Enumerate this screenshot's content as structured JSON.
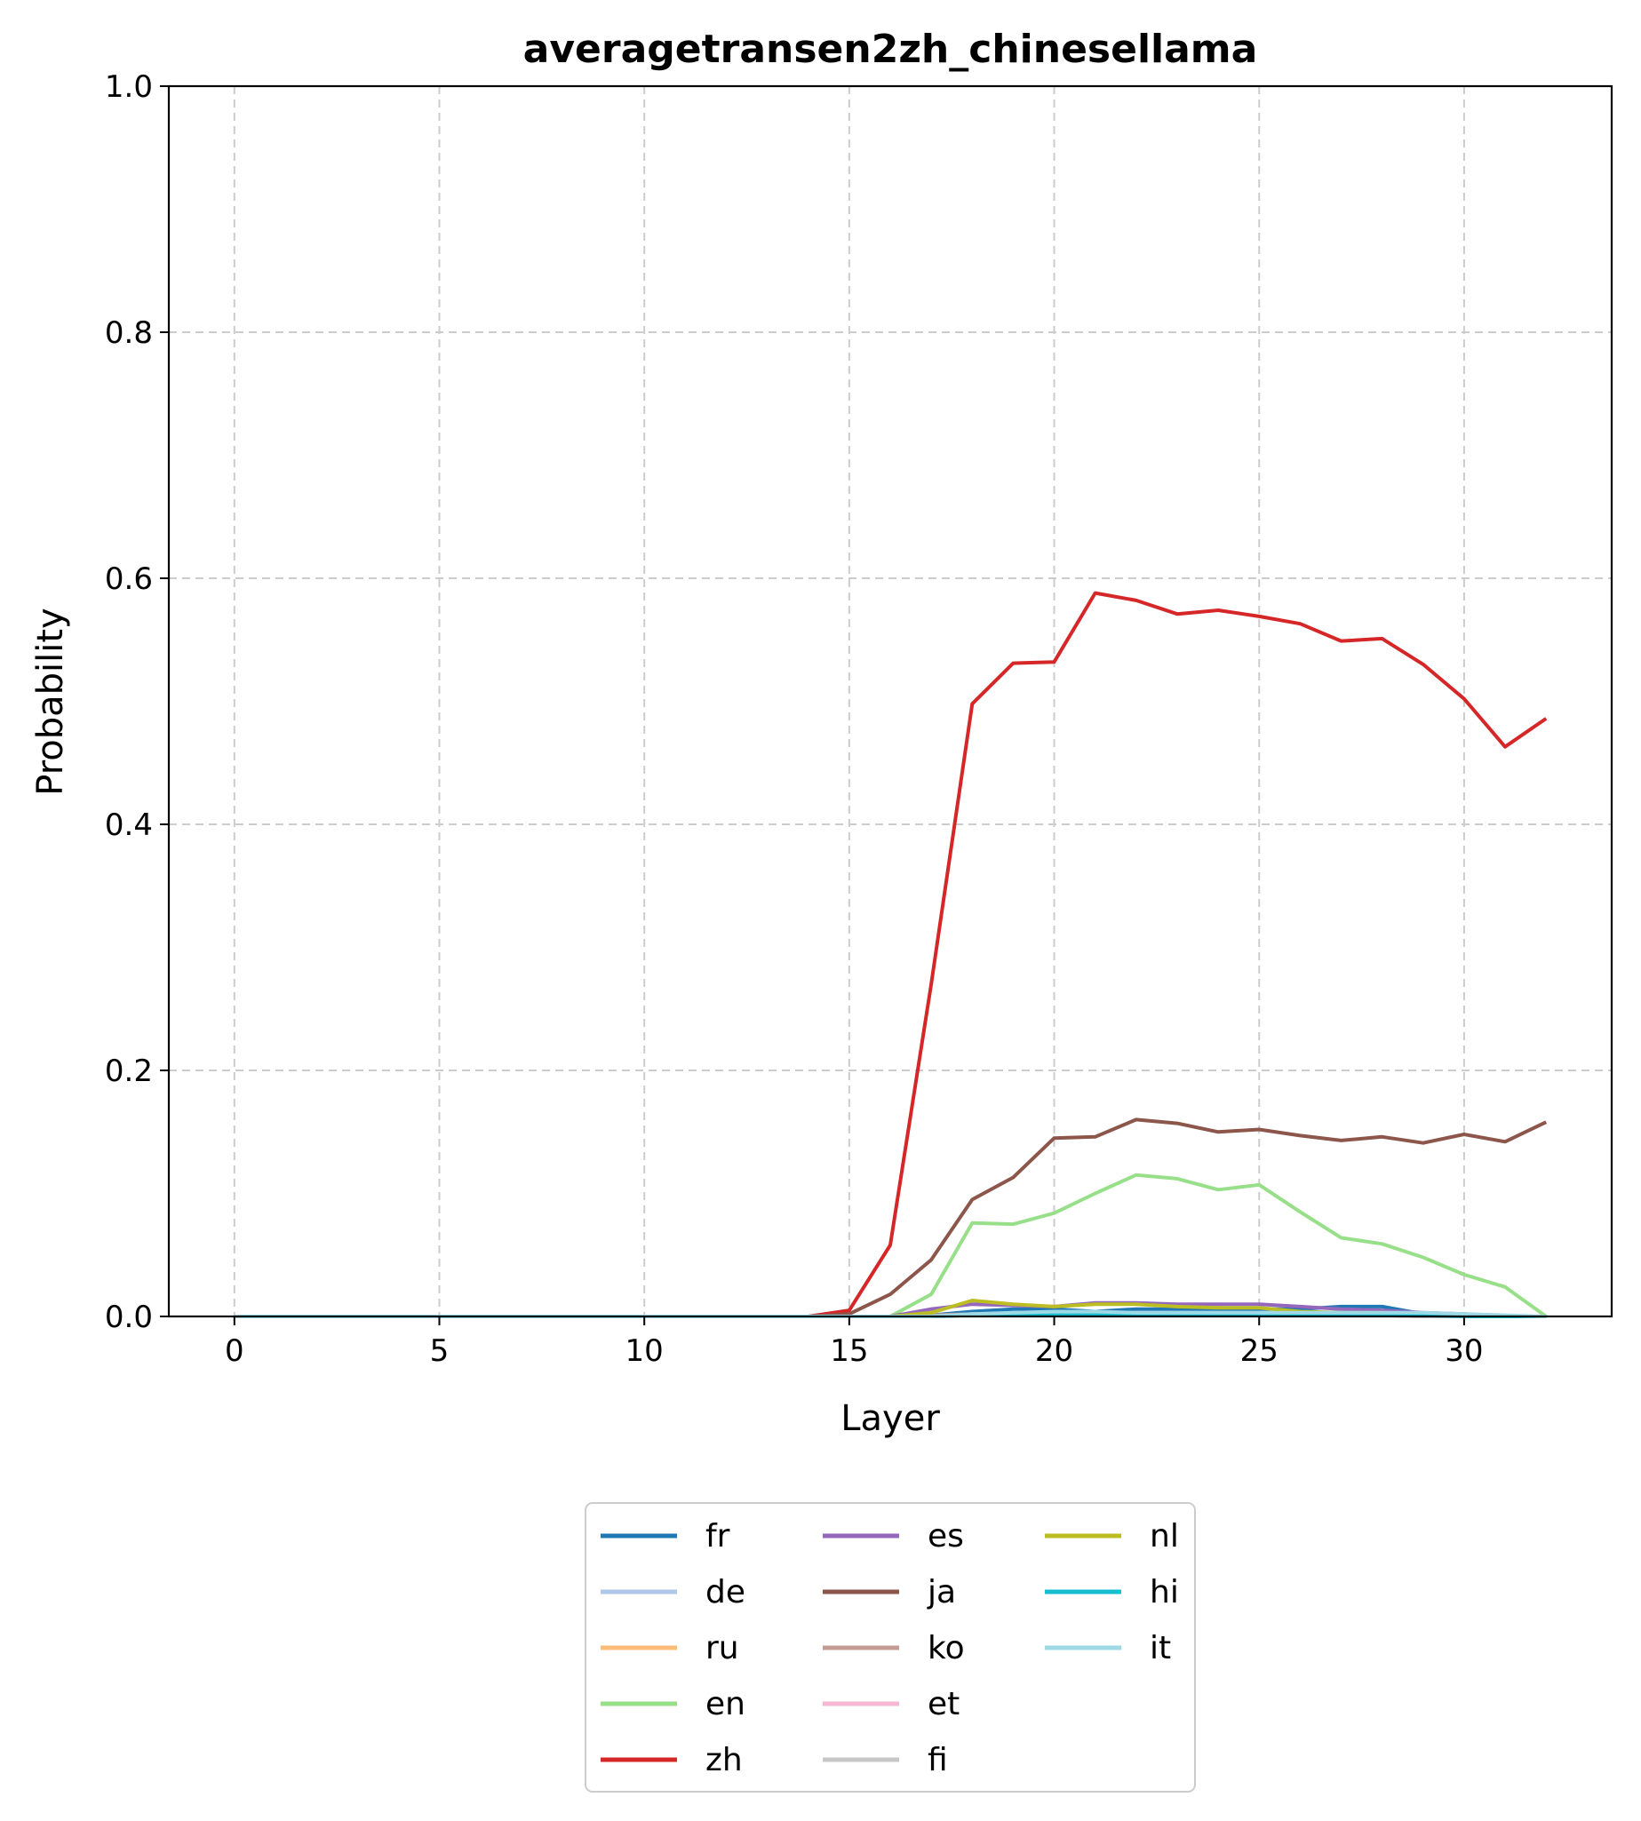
{
  "chart_data": {
    "type": "line",
    "title": "averagetransen2zh_chinesellama",
    "xlabel": "Layer",
    "ylabel": "Probability",
    "xlim": [
      -1.6,
      33.6
    ],
    "ylim": [
      0,
      1.0
    ],
    "xticks": [
      0,
      5,
      10,
      15,
      20,
      25,
      30
    ],
    "yticks": [
      0.0,
      0.2,
      0.4,
      0.6,
      0.8,
      1.0
    ],
    "ytick_labels": [
      "0.0",
      "0.2",
      "0.4",
      "0.6",
      "0.8",
      "1.0"
    ],
    "grid": true,
    "legend_position": "bottom-center",
    "legend_columns": 3,
    "x": [
      0,
      1,
      2,
      3,
      4,
      5,
      6,
      7,
      8,
      9,
      10,
      11,
      12,
      13,
      14,
      15,
      16,
      17,
      18,
      19,
      20,
      21,
      22,
      23,
      24,
      25,
      26,
      27,
      28,
      29,
      30,
      31,
      32
    ],
    "series": [
      {
        "name": "fr",
        "color": "#1f77b4",
        "values": [
          0,
          0,
          0,
          0,
          0,
          0,
          0,
          0,
          0,
          0,
          0,
          0,
          0,
          0,
          0,
          0,
          0,
          0.001,
          0.004,
          0.006,
          0.006,
          0.004,
          0.006,
          0.006,
          0.006,
          0.006,
          0.006,
          0.008,
          0.008,
          0.002,
          0.001,
          0,
          0
        ]
      },
      {
        "name": "de",
        "color": "#aec7e8",
        "values": [
          0,
          0,
          0,
          0,
          0,
          0,
          0,
          0,
          0,
          0,
          0,
          0,
          0,
          0,
          0,
          0,
          0,
          0,
          0.002,
          0.002,
          0.002,
          0.002,
          0.002,
          0.002,
          0.002,
          0.002,
          0.002,
          0.002,
          0.002,
          0.001,
          0.001,
          0,
          0
        ]
      },
      {
        "name": "ru",
        "color": "#ffbb78",
        "values": [
          0,
          0,
          0,
          0,
          0,
          0,
          0,
          0,
          0,
          0,
          0,
          0,
          0,
          0,
          0,
          0,
          0,
          0,
          0.001,
          0.001,
          0.001,
          0.001,
          0.001,
          0.001,
          0.001,
          0.001,
          0.001,
          0.001,
          0.001,
          0,
          0,
          0,
          0
        ]
      },
      {
        "name": "en",
        "color": "#98df8a",
        "values": [
          0,
          0,
          0,
          0,
          0,
          0,
          0,
          0,
          0,
          0,
          0,
          0,
          0,
          0,
          0,
          0,
          0,
          0.018,
          0.076,
          0.075,
          0.084,
          0.1,
          0.115,
          0.112,
          0.103,
          0.107,
          0.085,
          0.064,
          0.059,
          0.048,
          0.034,
          0.024,
          0
        ]
      },
      {
        "name": "zh",
        "color": "#d62728",
        "values": [
          0,
          0,
          0,
          0,
          0,
          0,
          0,
          0,
          0,
          0,
          0,
          0,
          0,
          0,
          0,
          0.005,
          0.058,
          0.27,
          0.498,
          0.531,
          0.532,
          0.588,
          0.582,
          0.571,
          0.574,
          0.569,
          0.563,
          0.549,
          0.551,
          0.53,
          0.502,
          0.463,
          0.486
        ]
      },
      {
        "name": "es",
        "color": "#9467bd",
        "values": [
          0,
          0,
          0,
          0,
          0,
          0,
          0,
          0,
          0,
          0,
          0,
          0,
          0,
          0,
          0,
          0,
          0,
          0.006,
          0.01,
          0.009,
          0.008,
          0.011,
          0.011,
          0.01,
          0.01,
          0.01,
          0.008,
          0.006,
          0.005,
          0.003,
          0.002,
          0,
          0
        ]
      },
      {
        "name": "ja",
        "color": "#8c564b",
        "values": [
          0,
          0,
          0,
          0,
          0,
          0,
          0,
          0,
          0,
          0,
          0,
          0,
          0,
          0,
          0,
          0.002,
          0.018,
          0.046,
          0.095,
          0.113,
          0.145,
          0.146,
          0.16,
          0.157,
          0.15,
          0.152,
          0.147,
          0.143,
          0.146,
          0.141,
          0.148,
          0.142,
          0.158
        ]
      },
      {
        "name": "ko",
        "color": "#c49c94",
        "values": [
          0,
          0,
          0,
          0,
          0,
          0,
          0,
          0,
          0,
          0,
          0,
          0,
          0,
          0,
          0,
          0,
          0,
          0.001,
          0.002,
          0.002,
          0.002,
          0.002,
          0.002,
          0.002,
          0.002,
          0.002,
          0.002,
          0.002,
          0.002,
          0.001,
          0.001,
          0,
          0
        ]
      },
      {
        "name": "et",
        "color": "#f7b6d2",
        "values": [
          0,
          0,
          0,
          0,
          0,
          0,
          0,
          0,
          0,
          0,
          0,
          0,
          0,
          0,
          0,
          0,
          0,
          0,
          0.001,
          0.001,
          0.001,
          0.001,
          0.001,
          0.001,
          0.001,
          0.001,
          0.001,
          0.001,
          0.001,
          0,
          0,
          0,
          0
        ]
      },
      {
        "name": "fi",
        "color": "#c7c7c7",
        "values": [
          0,
          0,
          0,
          0,
          0,
          0,
          0,
          0,
          0,
          0,
          0,
          0,
          0,
          0,
          0,
          0,
          0,
          0,
          0.001,
          0.001,
          0.001,
          0.001,
          0.001,
          0.001,
          0.001,
          0.001,
          0.001,
          0.001,
          0.001,
          0,
          0,
          0,
          0
        ]
      },
      {
        "name": "nl",
        "color": "#bcbd22",
        "values": [
          0,
          0,
          0,
          0,
          0,
          0,
          0,
          0,
          0,
          0,
          0,
          0,
          0,
          0,
          0,
          0,
          0,
          0.003,
          0.013,
          0.01,
          0.008,
          0.01,
          0.01,
          0.008,
          0.007,
          0.007,
          0.004,
          0.003,
          0.003,
          0.002,
          0.001,
          0,
          0
        ]
      },
      {
        "name": "hi",
        "color": "#17becf",
        "values": [
          0,
          0,
          0,
          0,
          0,
          0,
          0,
          0,
          0,
          0,
          0,
          0,
          0,
          0,
          0,
          0,
          0,
          0,
          0.001,
          0.001,
          0.001,
          0.001,
          0.001,
          0.001,
          0.001,
          0.001,
          0.001,
          0.001,
          0.001,
          0.001,
          0,
          0,
          0
        ]
      },
      {
        "name": "it",
        "color": "#9edae5",
        "values": [
          0,
          0,
          0,
          0,
          0,
          0,
          0,
          0,
          0,
          0,
          0,
          0,
          0,
          0,
          0,
          0,
          0,
          0,
          0.002,
          0.003,
          0.004,
          0.004,
          0.003,
          0.003,
          0.003,
          0.003,
          0.003,
          0.003,
          0.003,
          0.003,
          0.002,
          0.001,
          0
        ]
      }
    ]
  }
}
